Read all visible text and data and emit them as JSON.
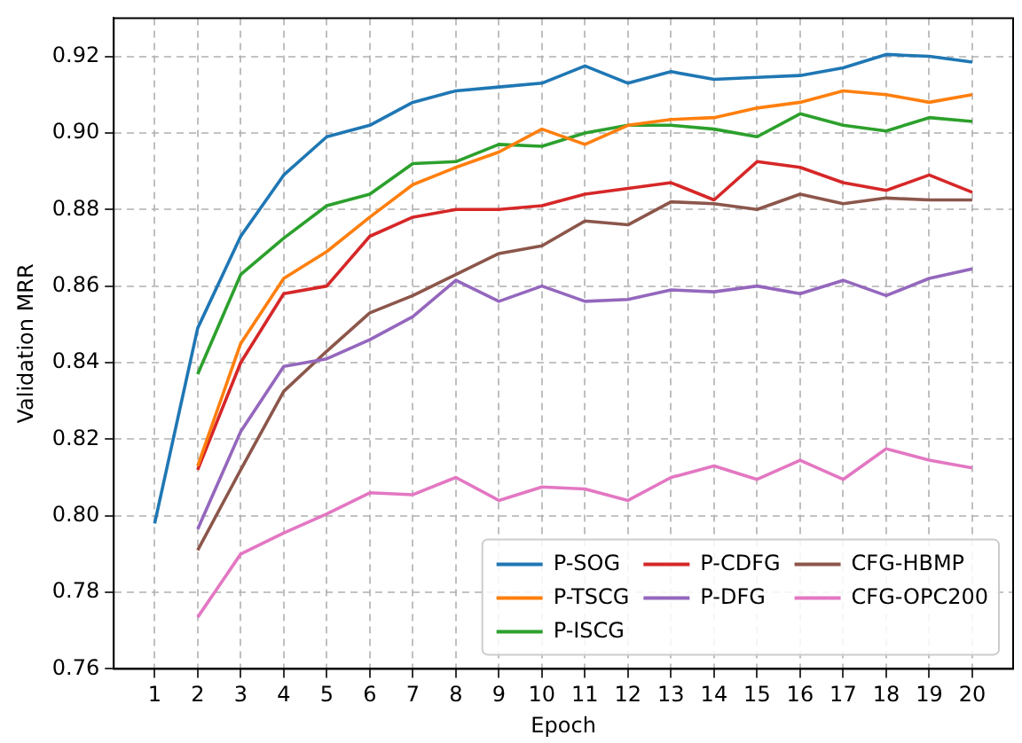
{
  "chart_data": {
    "type": "line",
    "xlabel": "Epoch",
    "ylabel": "Validation MRR",
    "x": [
      1,
      2,
      3,
      4,
      5,
      6,
      7,
      8,
      9,
      10,
      11,
      12,
      13,
      14,
      15,
      16,
      17,
      18,
      19,
      20
    ],
    "xlim": [
      0.05,
      20.95
    ],
    "xticks": [
      1,
      2,
      3,
      4,
      5,
      6,
      7,
      8,
      9,
      10,
      11,
      12,
      13,
      14,
      15,
      16,
      17,
      18,
      19,
      20
    ],
    "ylim": [
      0.76,
      0.93
    ],
    "yticks": [
      0.76,
      0.78,
      {
        "value": 0.8,
        "label": "0.80"
      },
      0.82,
      0.84,
      0.86,
      0.88,
      {
        "value": 0.9,
        "label": "0.90"
      },
      0.92
    ],
    "grid": true,
    "legend": "bottom right",
    "line_style": "solid",
    "marker": "none",
    "series": [
      {
        "name": "P-SOG",
        "color": "#1f77b4",
        "values": [
          0.798,
          0.849,
          0.873,
          0.889,
          0.899,
          0.902,
          0.908,
          0.911,
          0.912,
          0.913,
          0.9175,
          0.913,
          0.916,
          0.914,
          0.9145,
          0.915,
          0.917,
          0.9205,
          0.92,
          0.9185
        ]
      },
      {
        "name": "P-TSCG",
        "color": "#ff7f0e",
        "values": [
          null,
          0.813,
          0.845,
          0.862,
          0.869,
          0.878,
          0.8865,
          0.891,
          0.895,
          0.901,
          0.897,
          0.902,
          0.9035,
          0.904,
          0.9065,
          0.908,
          0.911,
          0.91,
          0.908,
          0.91
        ]
      },
      {
        "name": "P-ISCG",
        "color": "#2ca02c",
        "values": [
          null,
          0.837,
          0.863,
          0.8725,
          0.881,
          0.884,
          0.892,
          0.8925,
          0.897,
          0.8965,
          0.9,
          0.902,
          0.902,
          0.901,
          0.899,
          0.905,
          0.902,
          0.9005,
          0.904,
          0.903
        ]
      },
      {
        "name": "P-CDFG",
        "color": "#d62728",
        "values": [
          null,
          0.812,
          0.84,
          0.858,
          0.86,
          0.873,
          0.878,
          0.88,
          0.88,
          0.881,
          0.884,
          0.8855,
          0.887,
          0.8825,
          0.8925,
          0.891,
          0.887,
          0.885,
          0.889,
          0.8845
        ]
      },
      {
        "name": "P-DFG",
        "color": "#9467bd",
        "values": [
          null,
          0.7965,
          0.822,
          0.839,
          0.841,
          0.846,
          0.852,
          0.8615,
          0.856,
          0.86,
          0.856,
          0.8565,
          0.859,
          0.8585,
          0.86,
          0.858,
          0.8615,
          0.8575,
          0.862,
          0.8645
        ]
      },
      {
        "name": "CFG-HBMP",
        "color": "#8c564b",
        "values": [
          null,
          0.791,
          0.812,
          0.8325,
          0.843,
          0.853,
          0.8575,
          0.863,
          0.8685,
          0.8705,
          0.877,
          0.876,
          0.882,
          0.8815,
          0.88,
          0.884,
          0.8815,
          0.883,
          0.8825,
          0.8825
        ]
      },
      {
        "name": "CFG-OPC200",
        "color": "#e377c2",
        "values": [
          null,
          0.7735,
          0.79,
          0.7955,
          0.8005,
          0.806,
          0.8055,
          0.81,
          0.804,
          0.8075,
          0.807,
          0.804,
          0.81,
          0.813,
          0.8095,
          0.8145,
          0.8095,
          0.8175,
          0.8145,
          0.8125
        ]
      }
    ]
  }
}
